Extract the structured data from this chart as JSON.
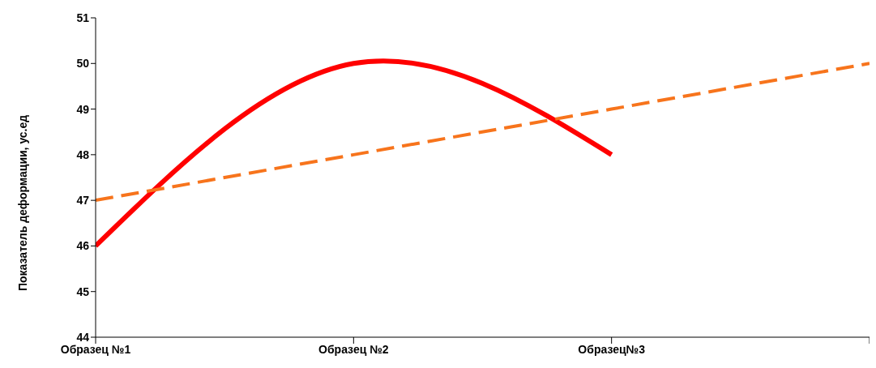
{
  "chart_data": {
    "type": "line",
    "ylabel": "Показатель деформации, ус.ед",
    "categories": [
      "Образец №1",
      "Образец №2",
      "Образец№3",
      null
    ],
    "series": [
      {
        "color": "#ff0000",
        "values": [
          46,
          50,
          48,
          null
        ],
        "line_style": "solid"
      },
      {
        "color": "#f7741c",
        "values": [
          47,
          48,
          49,
          50
        ],
        "line_style": "dashed"
      }
    ],
    "ylim": [
      44,
      51
    ],
    "yticks": [
      44,
      45,
      46,
      47,
      48,
      49,
      50,
      51
    ],
    "grid": false,
    "legend": false,
    "marker": "none"
  }
}
